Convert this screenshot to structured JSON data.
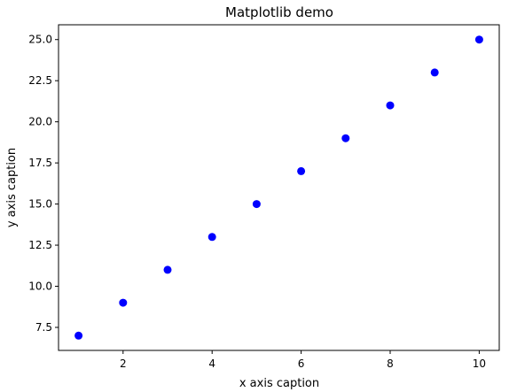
{
  "chart_data": {
    "type": "scatter",
    "title": "Matplotlib demo",
    "xlabel": "x axis caption",
    "ylabel": "y axis caption",
    "x": [
      1,
      2,
      3,
      4,
      5,
      6,
      7,
      8,
      9,
      10
    ],
    "y": [
      7,
      9,
      11,
      13,
      15,
      17,
      19,
      21,
      23,
      25
    ],
    "xlim": [
      0.55,
      10.45
    ],
    "ylim": [
      6.1,
      25.9
    ],
    "xticks": [
      2,
      4,
      6,
      8,
      10
    ],
    "xtick_labels": [
      "2",
      "4",
      "6",
      "8",
      "10"
    ],
    "yticks": [
      7.5,
      10.0,
      12.5,
      15.0,
      17.5,
      20.0,
      22.5,
      25.0
    ],
    "ytick_labels": [
      "7.5",
      "10.0",
      "12.5",
      "15.0",
      "17.5",
      "20.0",
      "22.5",
      "25.0"
    ],
    "marker_color": "#0000ff",
    "grid": false,
    "legend": "none"
  }
}
